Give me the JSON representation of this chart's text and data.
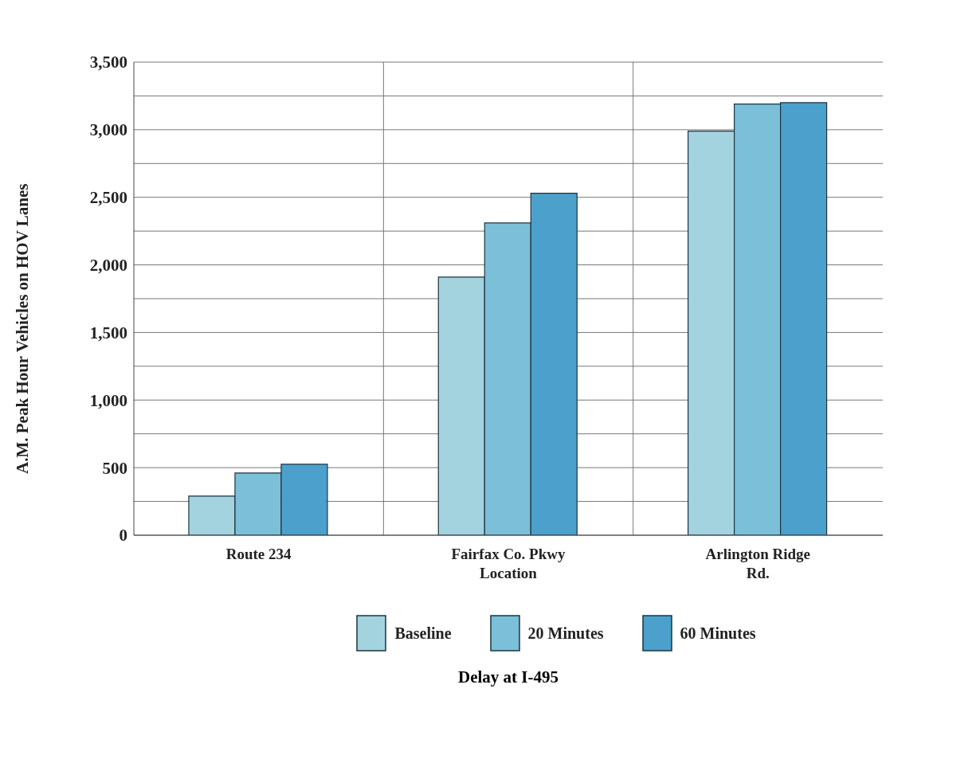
{
  "chart_data": {
    "type": "bar",
    "annotations": [
      "Delay at I-495"
    ],
    "ylabel": "A.M. Peak Hour Vehicles on HOV Lanes",
    "categories": [
      "Route 234",
      "Fairfax Co. Pkwy Location",
      "Arlington Ridge Rd."
    ],
    "series": [
      {
        "name": "Baseline",
        "color": "#a3d3df",
        "values": [
          290,
          1910,
          2990
        ]
      },
      {
        "name": "20 Minutes",
        "color": "#7bbfd8",
        "values": [
          460,
          2310,
          3190
        ]
      },
      {
        "name": "60 Minutes",
        "color": "#4ca0cc",
        "values": [
          525,
          2530,
          3200
        ]
      }
    ],
    "ylim": [
      0,
      3500
    ],
    "yticks": [
      0,
      {
        "value": 250,
        "label": null
      },
      {
        "value": 500,
        "label": "500"
      },
      {
        "value": 750,
        "label": null
      },
      {
        "value": 1000,
        "label": "1,000"
      },
      {
        "value": 1250,
        "label": null
      },
      {
        "value": 1500,
        "label": "1,500"
      },
      {
        "value": 1750,
        "label": null
      },
      {
        "value": 2000,
        "label": "2,000"
      },
      {
        "value": 2250,
        "label": null
      },
      {
        "value": 2500,
        "label": "2,500"
      },
      {
        "value": 2750,
        "label": null
      },
      {
        "value": 3000,
        "label": "3,000"
      },
      {
        "value": 3250,
        "label": null
      },
      {
        "value": 3500,
        "label": "3,500"
      }
    ],
    "grid": true,
    "legend": "bottom"
  }
}
